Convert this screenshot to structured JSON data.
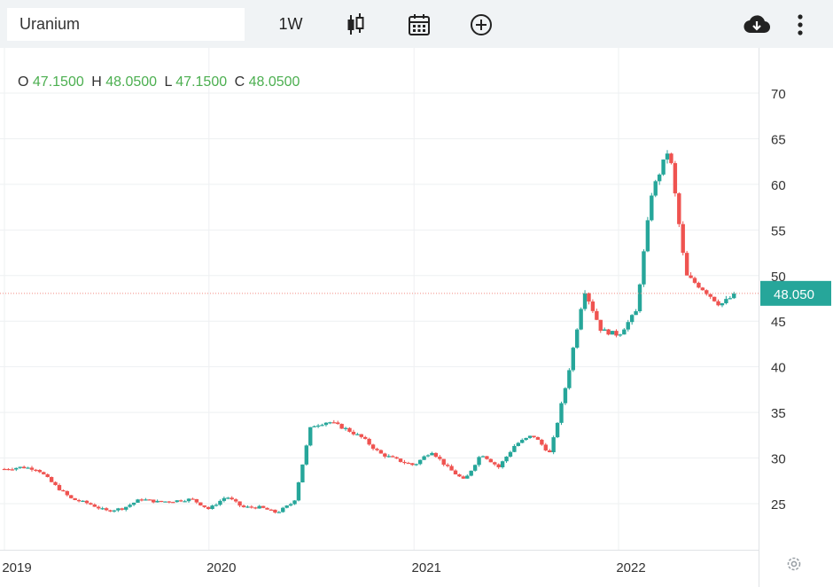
{
  "toolbar": {
    "symbol": "Uranium",
    "interval": "1W",
    "icons": [
      "candlestick-icon",
      "calendar-icon",
      "add-indicator-icon",
      "download-icon",
      "more-menu-icon"
    ]
  },
  "legend": {
    "o_label": "O",
    "o_value": "47.1500",
    "h_label": "H",
    "h_value": "48.0500",
    "l_label": "L",
    "l_value": "47.1500",
    "c_label": "C",
    "c_value": "48.0500"
  },
  "colors": {
    "up": "#26a69a",
    "down": "#ef5350",
    "price_line": "#f28b82",
    "price_tag": "#26a69a",
    "grid": "#eef0f2"
  },
  "chart_data": {
    "type": "candlestick",
    "title": "",
    "ylim": [
      20,
      74
    ],
    "y_ticks": [
      25,
      30,
      35,
      40,
      45,
      50,
      55,
      60,
      65,
      70
    ],
    "x_ticks": [
      "2019",
      "2020",
      "2021",
      "2022"
    ],
    "x_range": [
      "2019-01",
      "2022-08"
    ],
    "last_price": "48.050",
    "last_price_value": 48.05,
    "grid": true,
    "points": [
      [
        "2019-01",
        28.8
      ],
      [
        "2019-02",
        29.0
      ],
      [
        "2019-03",
        28.8
      ],
      [
        "2019-04",
        27.0
      ],
      [
        "2019-05",
        25.5
      ],
      [
        "2019-06",
        25.0
      ],
      [
        "2019-07",
        24.2
      ],
      [
        "2019-08",
        24.5
      ],
      [
        "2019-09",
        25.5
      ],
      [
        "2019-10",
        25.2
      ],
      [
        "2019-11",
        25.3
      ],
      [
        "2019-12",
        25.5
      ],
      [
        "2020-01",
        24.4
      ],
      [
        "2020-02",
        25.8
      ],
      [
        "2020-03",
        24.6
      ],
      [
        "2020-04",
        24.6
      ],
      [
        "2020-05",
        24.0
      ],
      [
        "2020-06",
        25.2
      ],
      [
        "2020-07",
        33.5
      ],
      [
        "2020-08",
        34.0
      ],
      [
        "2020-09",
        33.2
      ],
      [
        "2020-10",
        32.2
      ],
      [
        "2020-11",
        30.5
      ],
      [
        "2020-12",
        29.8
      ],
      [
        "2021-01",
        29.2
      ],
      [
        "2021-02",
        30.8
      ],
      [
        "2021-03",
        29.0
      ],
      [
        "2021-04",
        27.5
      ],
      [
        "2021-05",
        30.5
      ],
      [
        "2021-06",
        29.0
      ],
      [
        "2021-07",
        31.5
      ],
      [
        "2021-08",
        32.5
      ],
      [
        "2021-09",
        30.5
      ],
      [
        "2021-10",
        38.5
      ],
      [
        "2021-11",
        48.5
      ],
      [
        "2021-12",
        44.0
      ],
      [
        "2022-01",
        43.5
      ],
      [
        "2022-02",
        46.0
      ],
      [
        "2022-03",
        59.0
      ],
      [
        "2022-04",
        64.0
      ],
      [
        "2022-05",
        50.0
      ],
      [
        "2022-06",
        48.5
      ],
      [
        "2022-07",
        46.8
      ],
      [
        "2022-08",
        48.05
      ]
    ]
  }
}
